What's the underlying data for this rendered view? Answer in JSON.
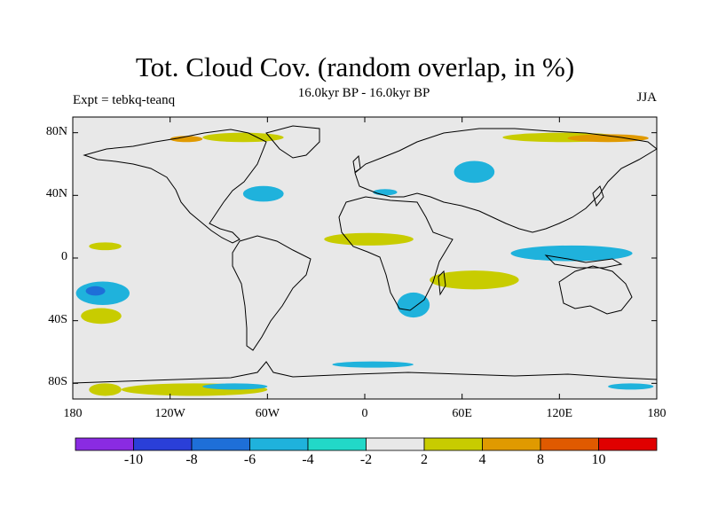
{
  "title": "Tot. Cloud Cov. (random overlap, in %)",
  "subtitle": "16.0kyr BP - 16.0kyr BP",
  "expt_label": "Expt = tebkq-teanq",
  "season": "JJA",
  "map": {
    "lon_range": [
      -180,
      180
    ],
    "lat_range": [
      -90,
      90
    ],
    "background_color": "#e8e8e8",
    "x_ticks": [
      "180",
      "120W",
      "60W",
      "0",
      "60E",
      "120E",
      "180"
    ],
    "y_ticks": [
      "80N",
      "40N",
      "0",
      "40S",
      "80S"
    ]
  },
  "colorbar": {
    "bins": [
      {
        "color": "#8a2be2"
      },
      {
        "color": "#2a3fd8"
      },
      {
        "color": "#1e6fd8"
      },
      {
        "color": "#1fb2dc"
      },
      {
        "color": "#22d8c8"
      },
      {
        "color": "#e8e8e8"
      },
      {
        "color": "#c8cc00"
      },
      {
        "color": "#e09a00"
      },
      {
        "color": "#e05a00"
      },
      {
        "color": "#e00000"
      }
    ],
    "labels": [
      "-10",
      "-8",
      "-6",
      "-4",
      "-2",
      "2",
      "4",
      "8",
      "10"
    ]
  },
  "chart_data": {
    "type": "heatmap",
    "title": "Tot. Cloud Cov. (random overlap, in %)",
    "units": "%",
    "levels": [
      -10,
      -8,
      -6,
      -4,
      -2,
      2,
      4,
      8,
      10
    ],
    "regions": [
      {
        "category": "positive",
        "level": 4,
        "lon": [
          -175,
          -150
        ],
        "lat": [
          -42,
          -32
        ]
      },
      {
        "category": "positive",
        "level": 4,
        "lon": [
          -100,
          -50
        ],
        "lat": [
          74,
          80
        ]
      },
      {
        "category": "positive",
        "level": 4,
        "lon": [
          -170,
          -150
        ],
        "lat": [
          -88,
          -80
        ]
      },
      {
        "category": "positive",
        "level": 4,
        "lon": [
          -150,
          -60
        ],
        "lat": [
          -88,
          -80
        ]
      },
      {
        "category": "positive",
        "level": 4,
        "lon": [
          -25,
          30
        ],
        "lat": [
          8,
          16
        ]
      },
      {
        "category": "positive",
        "level": 4,
        "lon": [
          40,
          95
        ],
        "lat": [
          -20,
          -8
        ]
      },
      {
        "category": "positive",
        "level": 4,
        "lon": [
          85,
          160
        ],
        "lat": [
          74,
          80
        ]
      },
      {
        "category": "positive",
        "level": 8,
        "lon": [
          125,
          175
        ],
        "lat": [
          74,
          79
        ]
      },
      {
        "category": "positive",
        "level": 8,
        "lon": [
          -120,
          -100
        ],
        "lat": [
          74,
          78
        ]
      },
      {
        "category": "positive",
        "level": 4,
        "lon": [
          -170,
          -150
        ],
        "lat": [
          5,
          10
        ]
      },
      {
        "category": "negative",
        "level": -4,
        "lon": [
          -178,
          -145
        ],
        "lat": [
          -30,
          -15
        ]
      },
      {
        "category": "negative",
        "level": -6,
        "lon": [
          -172,
          -160
        ],
        "lat": [
          -24,
          -18
        ]
      },
      {
        "category": "negative",
        "level": -4,
        "lon": [
          -75,
          -50
        ],
        "lat": [
          36,
          46
        ]
      },
      {
        "category": "negative",
        "level": -4,
        "lon": [
          55,
          80
        ],
        "lat": [
          48,
          62
        ]
      },
      {
        "category": "negative",
        "level": -4,
        "lon": [
          90,
          165
        ],
        "lat": [
          -2,
          8
        ]
      },
      {
        "category": "negative",
        "level": -4,
        "lon": [
          20,
          40
        ],
        "lat": [
          -38,
          -22
        ]
      },
      {
        "category": "negative",
        "level": -4,
        "lon": [
          -20,
          30
        ],
        "lat": [
          -70,
          -66
        ]
      },
      {
        "category": "negative",
        "level": -4,
        "lon": [
          5,
          20
        ],
        "lat": [
          40,
          44
        ]
      },
      {
        "category": "negative",
        "level": -4,
        "lon": [
          150,
          178
        ],
        "lat": [
          -84,
          -80
        ]
      },
      {
        "category": "negative",
        "level": -4,
        "lon": [
          -100,
          -60
        ],
        "lat": [
          -84,
          -80
        ]
      }
    ]
  }
}
